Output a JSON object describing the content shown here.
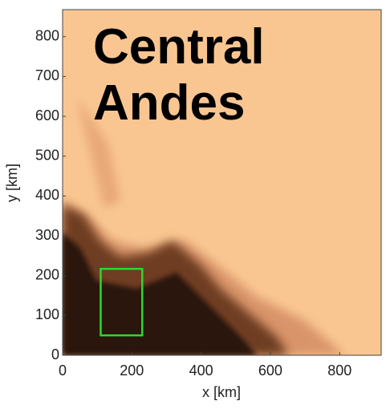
{
  "chart_data": {
    "type": "raster-map",
    "title": "Central Andes",
    "xlabel": "x [km]",
    "ylabel": "y [km]",
    "xlim": [
      0,
      920
    ],
    "ylim": [
      0,
      868
    ],
    "xticks": [
      0,
      200,
      400,
      600,
      800
    ],
    "yticks": [
      0,
      100,
      200,
      300,
      400,
      500,
      600,
      700,
      800
    ],
    "annotations": [
      {
        "x": [
          110,
          230
        ],
        "y": [
          50,
          217
        ],
        "color": "#2ed82e"
      }
    ]
  }
}
